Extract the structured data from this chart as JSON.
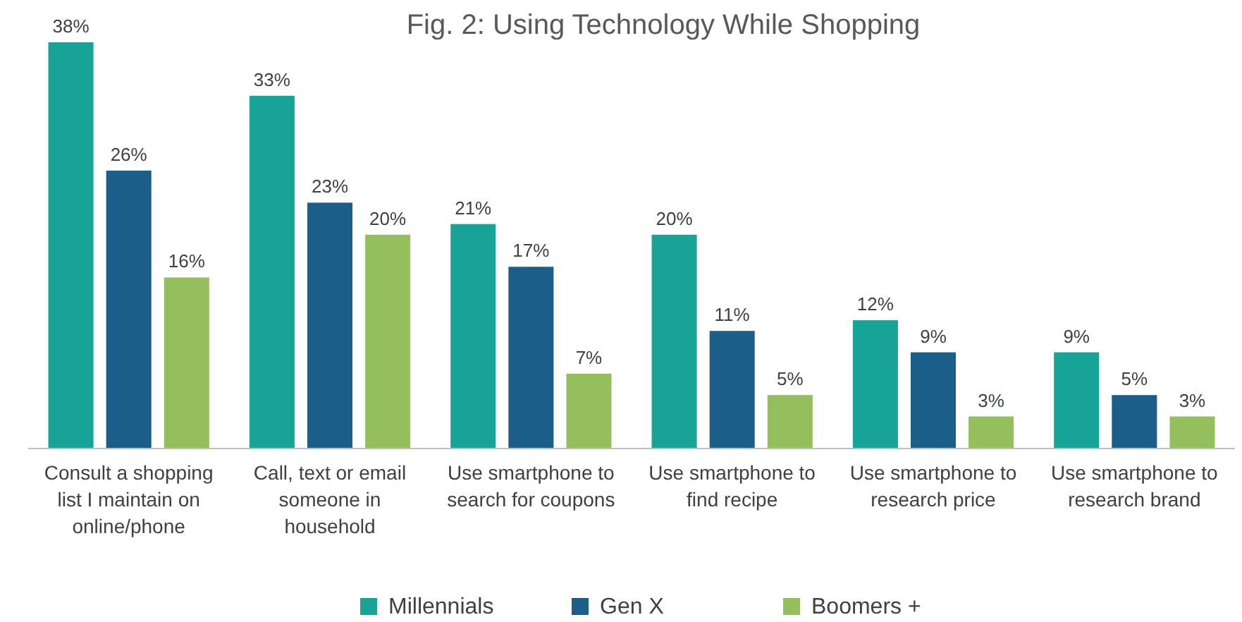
{
  "chart_data": {
    "type": "bar",
    "title": "Fig. 2: Using Technology While Shopping",
    "categories": [
      "Consult a shopping list I maintain on online/phone",
      "Call, text or email someone in household",
      "Use smartphone to search for coupons",
      "Use smartphone to find recipe",
      "Use smartphone to research price",
      "Use smartphone to research brand"
    ],
    "series": [
      {
        "name": "Millennials",
        "color": "#17a398",
        "values": [
          38,
          33,
          21,
          20,
          12,
          9
        ],
        "value_labels": [
          "38%",
          "33%",
          "21%",
          "20%",
          "12%",
          "9%"
        ]
      },
      {
        "name": "Gen X",
        "color": "#1b5e8a",
        "values": [
          26,
          23,
          17,
          11,
          9,
          5
        ],
        "value_labels": [
          "26%",
          "23%",
          "17%",
          "11%",
          "9%",
          "5%"
        ]
      },
      {
        "name": "Boomers +",
        "color": "#93c05c",
        "values": [
          16,
          20,
          7,
          5,
          3,
          3
        ],
        "value_labels": [
          "16%",
          "20%",
          "7%",
          "5%",
          "3%",
          "3%"
        ]
      }
    ],
    "legend": "bottom"
  }
}
